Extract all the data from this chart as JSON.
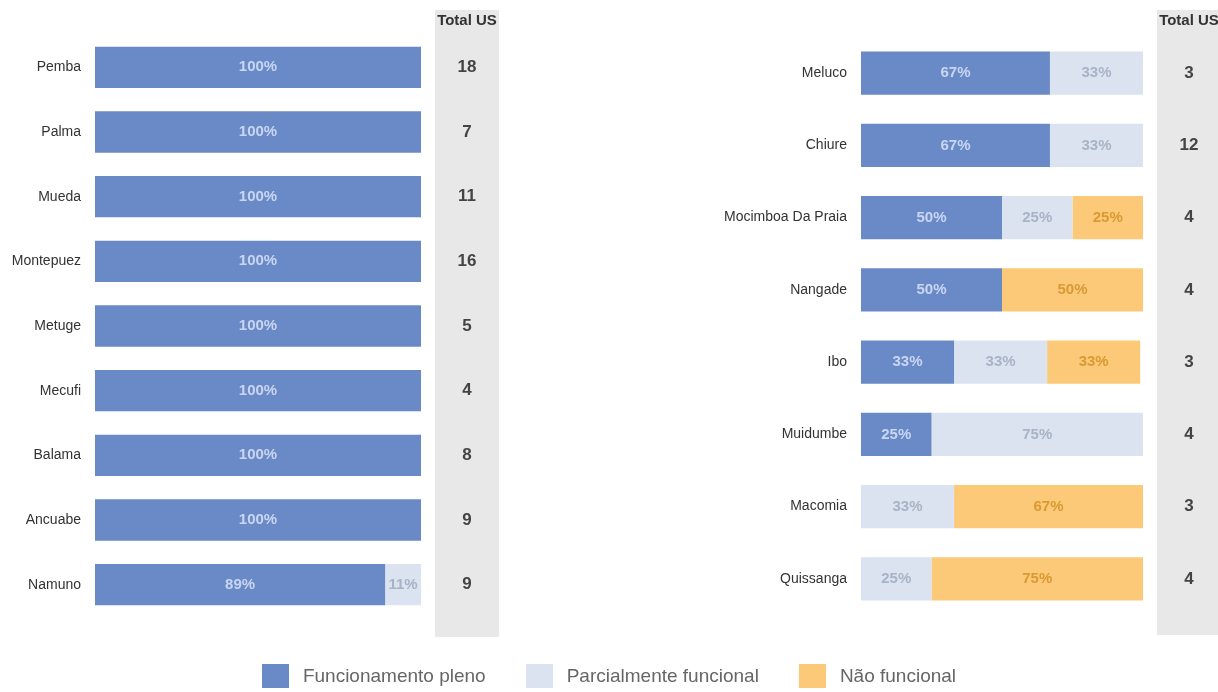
{
  "chart_data": [
    {
      "type": "bar",
      "orientation": "horizontal",
      "stacked": true,
      "categories": [
        "Pemba",
        "Palma",
        "Mueda",
        "Montepuez",
        "Metuge",
        "Mecufi",
        "Balama",
        "Ancuabe",
        "Namuno"
      ],
      "xlim": [
        0,
        100
      ],
      "tick_labels": "y",
      "grid": false,
      "legend": "bottom",
      "series": [
        {
          "name": "Funcionamento pleno",
          "color": "#6a8ac7",
          "values": [
            100,
            100,
            100,
            100,
            100,
            100,
            100,
            100,
            89
          ],
          "value_labels": [
            "100%",
            "100%",
            "100%",
            "100%",
            "100%",
            "100%",
            "100%",
            "100%",
            "89%"
          ]
        },
        {
          "name": "Parcialmente funcional",
          "color": "#dae3ef",
          "values": [
            null,
            null,
            null,
            null,
            null,
            null,
            null,
            null,
            11
          ],
          "value_labels": [
            null,
            null,
            null,
            null,
            null,
            null,
            null,
            null,
            "11%"
          ]
        }
      ],
      "annotations": [
        "Total US",
        "18",
        "7",
        "11",
        "16",
        "5",
        "4",
        "8",
        "9",
        "9"
      ]
    },
    {
      "type": "bar",
      "orientation": "horizontal",
      "stacked": true,
      "categories": [
        "Meluco",
        "Chiure",
        "Mocimboa Da Praia",
        "Nangade",
        "Ibo",
        "Muidumbe",
        "Macomia",
        "Quissanga"
      ],
      "xlim": [
        0,
        100
      ],
      "tick_labels": "y",
      "grid": false,
      "legend": "bottom",
      "series": [
        {
          "name": "Funcionamento pleno",
          "color": "#6a8ac7",
          "values": [
            67,
            67,
            50,
            50,
            33,
            25,
            null,
            null
          ],
          "value_labels": [
            "67%",
            "67%",
            "50%",
            "50%",
            "33%",
            "25%",
            null,
            null
          ]
        },
        {
          "name": "Parcialmente funcional",
          "color": "#dae3ef",
          "values": [
            33,
            33,
            25,
            null,
            33,
            75,
            33,
            25
          ],
          "value_labels": [
            "33%",
            "33%",
            "25%",
            null,
            "33%",
            "75%",
            "33%",
            "25%"
          ]
        },
        {
          "name": "Não funcional",
          "color": "#fcc978",
          "values": [
            null,
            null,
            25,
            50,
            33,
            null,
            67,
            75
          ],
          "value_labels": [
            null,
            null,
            "25%",
            "50%",
            "33%",
            null,
            "67%",
            "75%"
          ]
        }
      ],
      "annotations": [
        "Total US",
        "3",
        "12",
        "4",
        "4",
        "3",
        "4",
        "3",
        "4"
      ]
    }
  ]
}
